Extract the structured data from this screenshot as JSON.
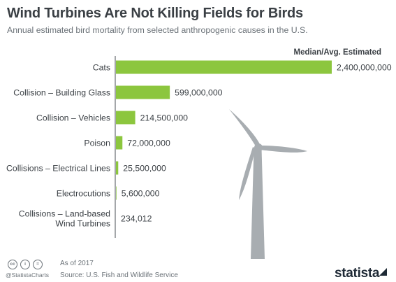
{
  "title": "Wind Turbines Are Not Killing Fields for Birds",
  "subtitle": "Annual estimated bird mortality from selected anthropogenic causes in the U.S.",
  "chart_data": {
    "type": "bar",
    "orientation": "horizontal",
    "column_header": "Median/Avg. Estimated",
    "categories": [
      [
        "Cats"
      ],
      [
        "Collision – Building Glass"
      ],
      [
        "Collision – Vehicles"
      ],
      [
        "Poison"
      ],
      [
        "Collisions – Electrical Lines"
      ],
      [
        "Electrocutions"
      ],
      [
        "Collisions – Land-based",
        "Wind Turbines"
      ]
    ],
    "values": [
      2400000000,
      599000000,
      214500000,
      72000000,
      25500000,
      5600000,
      234012
    ],
    "value_labels": [
      "2,400,000,000",
      "599,000,000",
      "214,500,000",
      "72,000,000",
      "25,500,000",
      "5,600,000",
      "234,012"
    ],
    "xlim": [
      0,
      2400000000
    ],
    "bar_color": "#8cc63e",
    "grid": false,
    "legend": "none"
  },
  "decoration": {
    "turbine_color": "#a8adb1",
    "icon": "wind-turbine-icon"
  },
  "footer": {
    "as_of": "As of 2017",
    "source": "Source: U.S. Fish and Wildlife Service",
    "handle": "@StatistaCharts",
    "license_icons": [
      "cc",
      "i",
      "="
    ],
    "brand": "statista"
  }
}
